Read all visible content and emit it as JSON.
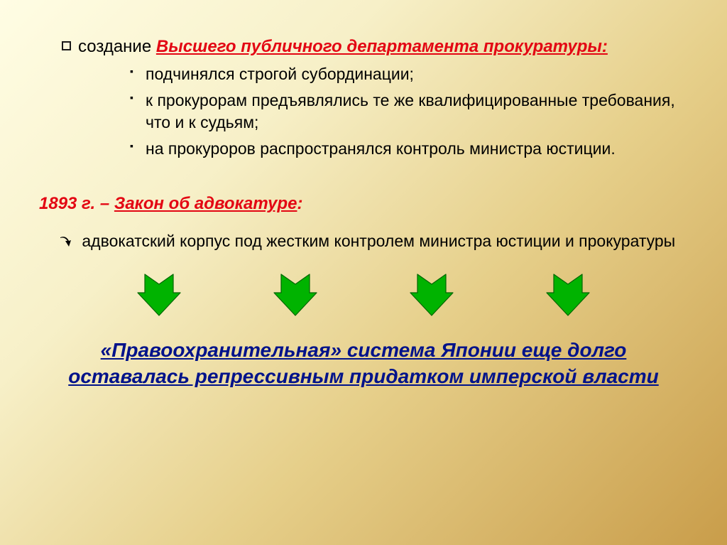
{
  "main_bullet": {
    "lead": "создание ",
    "highlight": "Высшего публичного департамента прокуратуры:"
  },
  "sub_items": [
    "подчинялся строгой субординации;",
    "к прокурорам предъявлялись те же квалифицированные требования, что и к судьям;",
    "на прокуроров распространялся контроль министра юстиции."
  ],
  "law": {
    "year": "1893 г.",
    "dash": " – ",
    "title": "Закон об адвокатуре",
    "colon": ":"
  },
  "arrow_bullet_text": "адвокатский корпус под жестким контролем министра юстиции и прокуратуры",
  "arrows": {
    "count": 4,
    "fill": "#00b300",
    "stroke": "#006600",
    "width": 64,
    "height": 62
  },
  "conclusion": "«Правоохранительная» система Японии еще долго оставалась репрессивным придатком имперской власти",
  "colors": {
    "red": "#e30613",
    "blue": "#00128a",
    "text": "#000000"
  }
}
